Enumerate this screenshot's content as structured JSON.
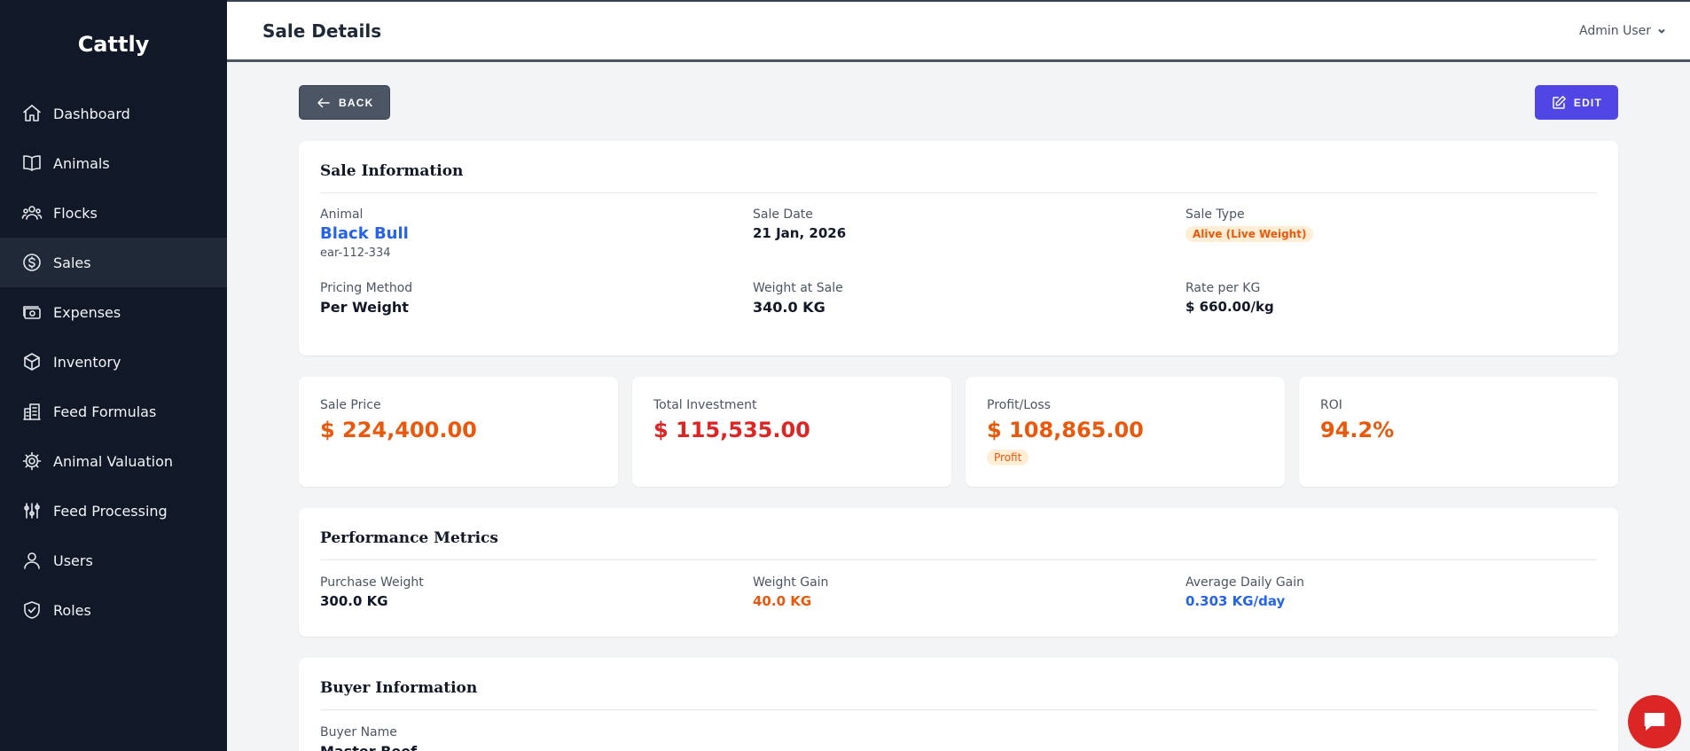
{
  "app": {
    "name": "Cattly"
  },
  "sidebar": {
    "items": [
      {
        "label": "Dashboard",
        "icon": "home-icon"
      },
      {
        "label": "Animals",
        "icon": "book-icon"
      },
      {
        "label": "Flocks",
        "icon": "users-group-icon"
      },
      {
        "label": "Sales",
        "icon": "dollar-circle-icon",
        "active": true
      },
      {
        "label": "Expenses",
        "icon": "cash-icon"
      },
      {
        "label": "Inventory",
        "icon": "cube-icon"
      },
      {
        "label": "Feed Formulas",
        "icon": "building-icon"
      },
      {
        "label": "Animal Valuation",
        "icon": "gear-icon"
      },
      {
        "label": "Feed Processing",
        "icon": "sliders-icon"
      },
      {
        "label": "Users",
        "icon": "user-icon"
      },
      {
        "label": "Roles",
        "icon": "shield-check-icon"
      }
    ]
  },
  "header": {
    "title": "Sale Details",
    "user": "Admin User"
  },
  "toolbar": {
    "back_label": "BACK",
    "edit_label": "EDIT"
  },
  "sale_info": {
    "title": "Sale Information",
    "animal_label": "Animal",
    "animal_name": "Black Bull",
    "animal_tag": "ear-112-334",
    "sale_date_label": "Sale Date",
    "sale_date": "21 Jan, 2026",
    "sale_type_label": "Sale Type",
    "sale_type": "Alive (Live Weight)",
    "pricing_method_label": "Pricing Method",
    "pricing_method": "Per Weight",
    "weight_label": "Weight at Sale",
    "weight": "340.0 KG",
    "rate_label": "Rate per KG",
    "rate": "$ 660.00/kg"
  },
  "stats": {
    "sale_price_label": "Sale Price",
    "sale_price": "$ 224,400.00",
    "investment_label": "Total Investment",
    "investment": "$ 115,535.00",
    "profit_label": "Profit/Loss",
    "profit": "$ 108,865.00",
    "profit_badge": "Profit",
    "roi_label": "ROI",
    "roi": "94.2%"
  },
  "performance": {
    "title": "Performance Metrics",
    "purchase_weight_label": "Purchase Weight",
    "purchase_weight": "300.0 KG",
    "weight_gain_label": "Weight Gain",
    "weight_gain": "40.0 KG",
    "adg_label": "Average Daily Gain",
    "adg": "0.303 KG/day"
  },
  "buyer": {
    "title": "Buyer Information",
    "name_label": "Buyer Name",
    "name": "Master Beef"
  },
  "colors": {
    "sidebar": "#111827",
    "accent": "#4f46e5",
    "orange": "#ea580c",
    "red": "#dc2626",
    "blue": "#2563eb"
  }
}
